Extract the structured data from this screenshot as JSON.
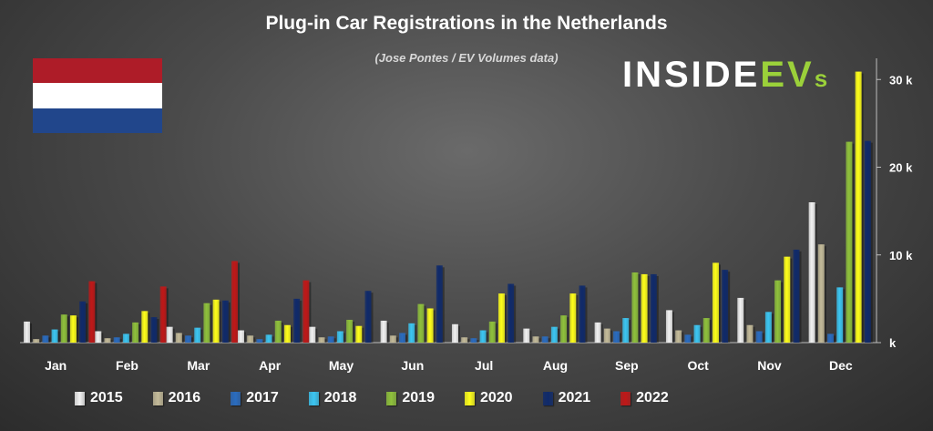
{
  "chart_data": {
    "type": "bar",
    "title": "Plug-in Car Registrations in the Netherlands",
    "subtitle": "(Jose Pontes / EV Volumes data)",
    "categories": [
      "Jan",
      "Feb",
      "Mar",
      "Apr",
      "May",
      "Jun",
      "Jul",
      "Aug",
      "Sep",
      "Oct",
      "Nov",
      "Dec"
    ],
    "series": [
      {
        "name": "2015",
        "color": "#f2f2f2",
        "values": [
          2.4,
          1.3,
          1.8,
          1.4,
          1.8,
          2.5,
          2.1,
          1.6,
          2.3,
          3.7,
          5.1,
          16.0
        ]
      },
      {
        "name": "2016",
        "color": "#c4bb9a",
        "values": [
          0.4,
          0.5,
          1.1,
          0.8,
          0.6,
          0.8,
          0.6,
          0.7,
          1.6,
          1.4,
          2.0,
          11.2
        ]
      },
      {
        "name": "2017",
        "color": "#2a6cc0",
        "values": [
          0.8,
          0.6,
          0.8,
          0.4,
          0.7,
          1.1,
          0.5,
          0.7,
          1.3,
          0.9,
          1.3,
          1.0
        ]
      },
      {
        "name": "2018",
        "color": "#3cc6f2",
        "values": [
          1.5,
          1.0,
          1.7,
          0.9,
          1.3,
          2.2,
          1.4,
          1.8,
          2.8,
          2.0,
          3.5,
          6.3
        ]
      },
      {
        "name": "2019",
        "color": "#8fc13c",
        "values": [
          3.2,
          2.3,
          4.5,
          2.5,
          2.6,
          4.4,
          2.4,
          3.1,
          8.0,
          2.8,
          7.1,
          22.9
        ]
      },
      {
        "name": "2020",
        "color": "#ffff1a",
        "values": [
          3.1,
          3.6,
          4.9,
          2.0,
          1.9,
          3.9,
          5.6,
          5.6,
          7.8,
          9.1,
          9.8,
          30.9
        ]
      },
      {
        "name": "2021",
        "color": "#0f2a6b",
        "values": [
          4.7,
          2.9,
          4.8,
          5.0,
          5.9,
          8.8,
          6.7,
          6.5,
          7.8,
          8.3,
          10.6,
          23.0
        ]
      },
      {
        "name": "2022",
        "color": "#c01818",
        "values": [
          7.0,
          6.4,
          9.3,
          7.1,
          null,
          null,
          null,
          null,
          null,
          null,
          null,
          null
        ]
      }
    ],
    "y_axis": {
      "ticks": [
        "k",
        "10 k",
        "20 k",
        "30 k"
      ],
      "tick_values": [
        0,
        10,
        20,
        30
      ],
      "ylim": [
        0,
        32
      ]
    },
    "grid": false,
    "legend_position": "bottom"
  },
  "logo": {
    "part1": "INSIDE",
    "part2": "EV",
    "part3": "s"
  },
  "flag_colors": [
    "#ae1c28",
    "#ffffff",
    "#21468b"
  ]
}
